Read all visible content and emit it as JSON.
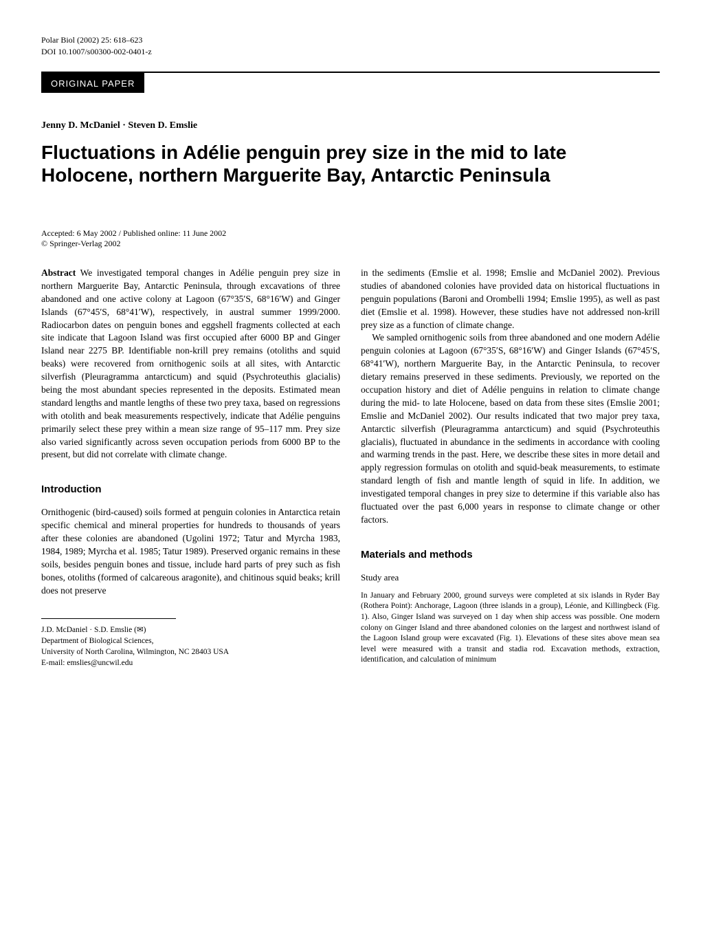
{
  "journal": {
    "citation": "Polar Biol (2002) 25: 618–623",
    "doi": "DOI 10.1007/s00300-002-0401-z"
  },
  "section_label": "ORIGINAL PAPER",
  "authors": "Jenny D. McDaniel · Steven D. Emslie",
  "title": "Fluctuations in Adélie penguin prey size in the mid to late Holocene, northern Marguerite Bay, Antarctic Peninsula",
  "acceptance": {
    "dates": "Accepted: 6 May 2002 / Published online: 11 June 2002",
    "copyright": "© Springer-Verlag 2002"
  },
  "abstract": {
    "label": "Abstract",
    "text": " We investigated temporal changes in Adélie penguin prey size in northern Marguerite Bay, Antarctic Peninsula, through excavations of three abandoned and one active colony at Lagoon (67°35′S, 68°16′W) and Ginger Islands (67°45′S, 68°41′W), respectively, in austral summer 1999/2000. Radiocarbon dates on penguin bones and eggshell fragments collected at each site indicate that Lagoon Island was first occupied after 6000 BP and Ginger Island near 2275 BP. Identifiable non-krill prey remains (otoliths and squid beaks) were recovered from ornithogenic soils at all sites, with Antarctic silverfish (Pleuragramma antarcticum) and squid (Psychroteuthis glacialis) being the most abundant species represented in the deposits. Estimated mean standard lengths and mantle lengths of these two prey taxa, based on regressions with otolith and beak measurements respectively, indicate that Adélie penguins primarily select these prey within a mean size range of 95–117 mm. Prey size also varied significantly across seven occupation periods from 6000 BP to the present, but did not correlate with climate change."
  },
  "introduction": {
    "heading": "Introduction",
    "p1": "Ornithogenic (bird-caused) soils formed at penguin colonies in Antarctica retain specific chemical and mineral properties for hundreds to thousands of years after these colonies are abandoned (Ugolini 1972; Tatur and Myrcha 1983, 1984, 1989; Myrcha et al. 1985; Tatur 1989). Preserved organic remains in these soils, besides penguin bones and tissue, include hard parts of prey such as fish bones, otoliths (formed of calcareous aragonite), and chitinous squid beaks; krill does not preserve"
  },
  "right_col": {
    "p1": "in the sediments (Emslie et al. 1998; Emslie and McDaniel 2002). Previous studies of abandoned colonies have provided data on historical fluctuations in penguin populations (Baroni and Orombelli 1994; Emslie 1995), as well as past diet (Emslie et al. 1998). However, these studies have not addressed non-krill prey size as a function of climate change.",
    "p2": "We sampled ornithogenic soils from three abandoned and one modern Adélie penguin colonies at Lagoon (67°35′S, 68°16′W) and Ginger Islands (67°45′S, 68°41′W), northern Marguerite Bay, in the Antarctic Peninsula, to recover dietary remains preserved in these sediments. Previously, we reported on the occupation history and diet of Adélie penguins in relation to climate change during the mid- to late Holocene, based on data from these sites (Emslie 2001; Emslie and McDaniel 2002). Our results indicated that two major prey taxa, Antarctic silverfish (Pleuragramma antarcticum) and squid (Psychroteuthis glacialis), fluctuated in abundance in the sediments in accordance with cooling and warming trends in the past. Here, we describe these sites in more detail and apply regression formulas on otolith and squid-beak measurements, to estimate standard length of fish and mantle length of squid in life. In addition, we investigated temporal changes in prey size to determine if this variable also has fluctuated over the past 6,000 years in response to climate change or other factors."
  },
  "methods": {
    "heading": "Materials and methods",
    "subheading": "Study area",
    "p1": "In January and February 2000, ground surveys were completed at six islands in Ryder Bay (Rothera Point): Anchorage, Lagoon (three islands in a group), Léonie, and Killingbeck (Fig. 1). Also, Ginger Island was surveyed on 1 day when ship access was possible. One modern colony on Ginger Island and three abandoned colonies on the largest and northwest island of the Lagoon Island group were excavated (Fig. 1). Elevations of these sites above mean sea level were measured with a transit and stadia rod. Excavation methods, extraction, identification, and calculation of minimum"
  },
  "footer": {
    "authors": "J.D. McDaniel · S.D. Emslie (✉)",
    "dept": "Department of Biological Sciences,",
    "univ": "University of North Carolina, Wilmington, NC 28403 USA",
    "email": "E-mail: emslies@uncwil.edu"
  }
}
